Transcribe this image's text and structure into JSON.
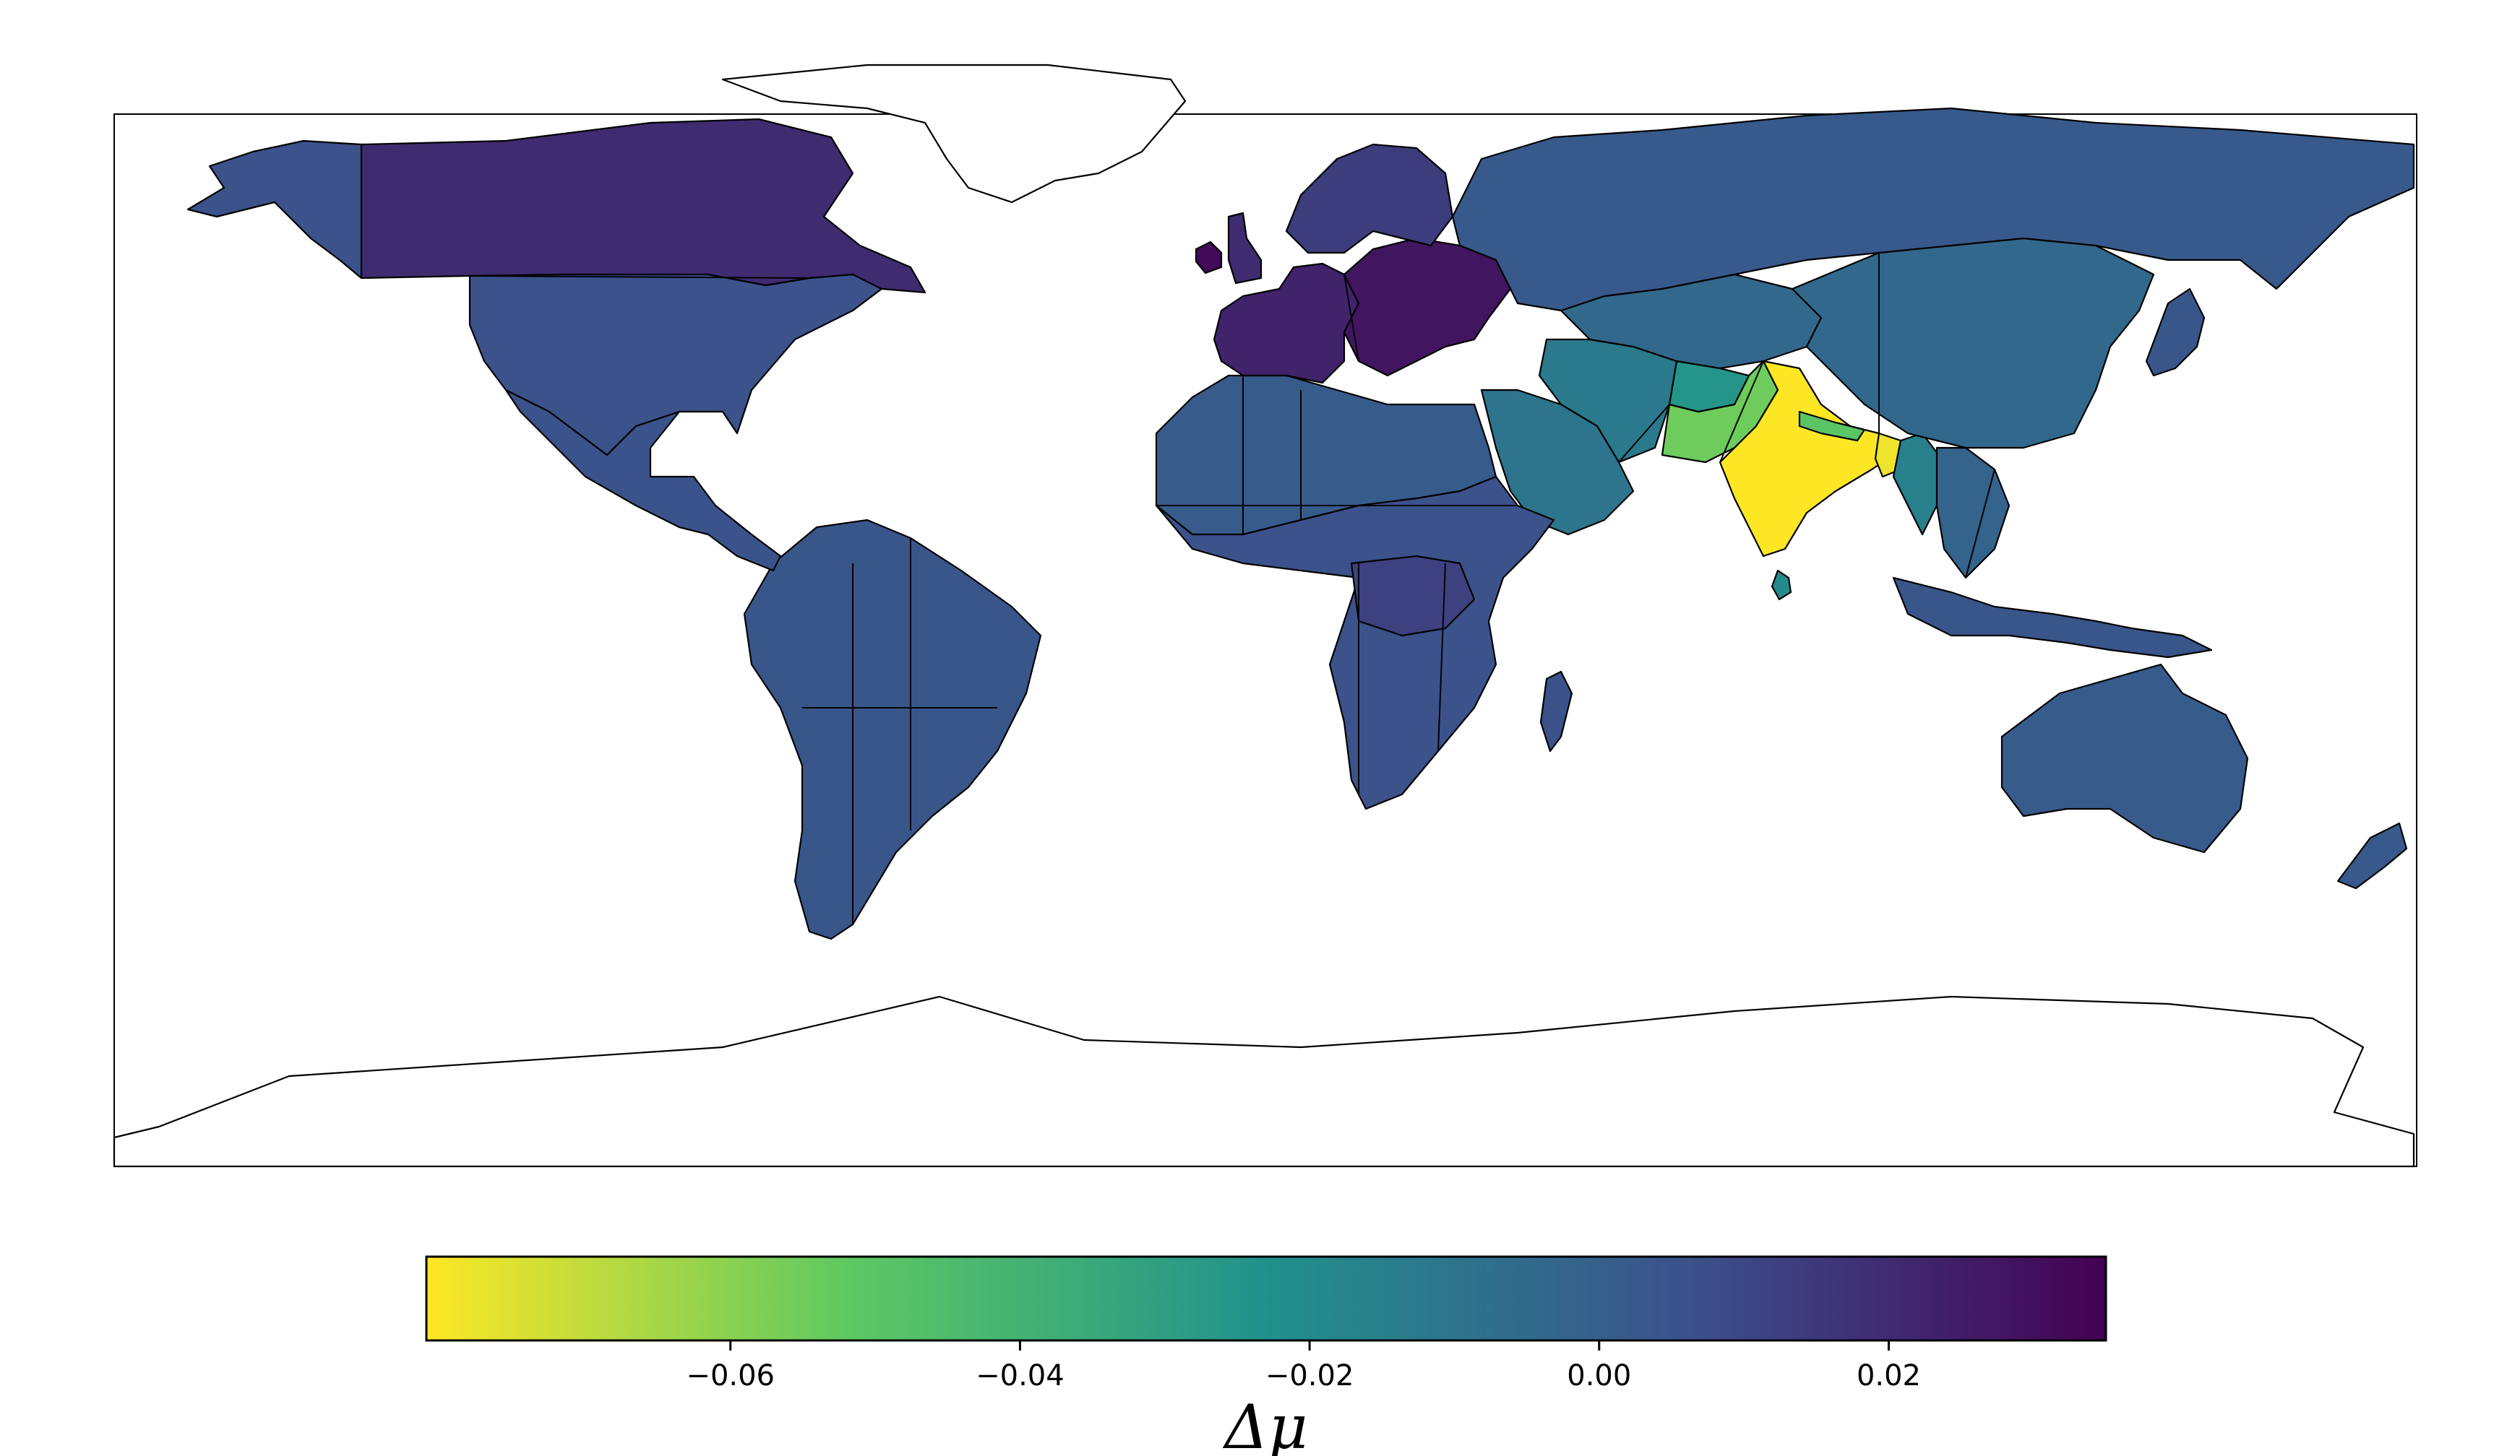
{
  "chart_data": {
    "type": "heatmap",
    "map_type": "choropleth world map",
    "colormap": "viridis (reversed)",
    "colorbar": {
      "orientation": "horizontal",
      "range": [
        -0.081,
        0.035
      ],
      "ticks": [
        -0.06,
        -0.04,
        -0.02,
        0.0,
        0.02
      ],
      "tick_labels": [
        "−0.06",
        "−0.04",
        "−0.02",
        "0.00",
        "0.02"
      ],
      "label": "Δμ",
      "colors": [
        "#fde725",
        "#5ec962",
        "#21918c",
        "#3b528b",
        "#440154"
      ]
    },
    "regions": [
      {
        "name": "India",
        "value": -0.081
      },
      {
        "name": "Bangladesh",
        "value": -0.078
      },
      {
        "name": "Pakistan",
        "value": -0.055
      },
      {
        "name": "Nepal",
        "value": -0.05
      },
      {
        "name": "Afghanistan",
        "value": -0.025
      },
      {
        "name": "Sri Lanka",
        "value": -0.02
      },
      {
        "name": "Myanmar",
        "value": -0.015
      },
      {
        "name": "Iran",
        "value": -0.012
      },
      {
        "name": "Arabian Peninsula",
        "value": -0.01
      },
      {
        "name": "Central Asia",
        "value": -0.004
      },
      {
        "name": "Nigeria",
        "value": -0.006
      },
      {
        "name": "China",
        "value": -0.004
      },
      {
        "name": "Southeast Asia",
        "value": -0.002
      },
      {
        "name": "Russia",
        "value": 0.003
      },
      {
        "name": "Australia",
        "value": 0.002
      },
      {
        "name": "New Zealand",
        "value": 0.003
      },
      {
        "name": "Indonesia",
        "value": 0.004
      },
      {
        "name": "North Africa",
        "value": 0.002
      },
      {
        "name": "Sub-Saharan Africa",
        "value": 0.006
      },
      {
        "name": "Central Africa",
        "value": 0.012
      },
      {
        "name": "South America",
        "value": 0.004
      },
      {
        "name": "Central America & Mexico",
        "value": 0.005
      },
      {
        "name": "United States",
        "value": 0.006
      },
      {
        "name": "Canada",
        "value": 0.02
      },
      {
        "name": "Alaska",
        "value": 0.006
      },
      {
        "name": "Western Europe",
        "value": 0.023
      },
      {
        "name": "Central Europe",
        "value": 0.028
      },
      {
        "name": "Scandinavia",
        "value": 0.014
      },
      {
        "name": "Ireland",
        "value": 0.032
      },
      {
        "name": "United Kingdom",
        "value": 0.02
      },
      {
        "name": "Japan",
        "value": 0.004
      },
      {
        "name": "Madagascar",
        "value": 0.006
      },
      {
        "name": "Greenland",
        "value": null
      },
      {
        "name": "Antarctica",
        "value": null
      }
    ]
  }
}
